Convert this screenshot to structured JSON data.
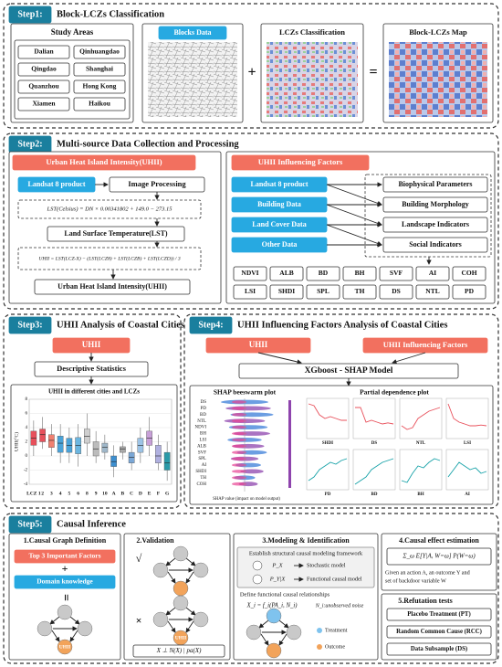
{
  "step1": {
    "badge": "Step1:",
    "title": "Block-LCZs Classification",
    "study_areas": {
      "title": "Study Areas",
      "cities": [
        "Dalian",
        "Qinhuangdao",
        "Qingdao",
        "Shanghai",
        "Quanzhou",
        "Hong Kong",
        "Xiamen",
        "Haikou"
      ]
    },
    "panels": [
      "Blocks Data",
      "LCZs Classification",
      "Block-LCZs Map"
    ],
    "operators": [
      "+",
      "="
    ]
  },
  "step2": {
    "badge": "Step2:",
    "title": "Multi-source Data Collection and Processing",
    "left": {
      "title": "Urban Heat Island Intensity(UHII)",
      "source": "Landsat 8 product",
      "process": "Image Processing",
      "formula1": "LST(Celsius) = DN × 0.00341802 + 149.0 − 273.15",
      "lst": "Land Surface Temperature(LST)",
      "formula2": "UHII = LST(LCZ-X) − (LST(LCZ8) + LST(LCZB) + LST(LCZD)) / 3",
      "result": "Urban Heat Island Intensity(UHII)"
    },
    "right": {
      "title": "UHII Influencing Factors",
      "sources": [
        "Landsat 8 product",
        "Building Data",
        "Land Cover Data",
        "Other Data"
      ],
      "factors": [
        "Biophysical Parameters",
        "Building Morphology",
        "Landscape Indicators",
        "Social Indicators"
      ],
      "indicators": [
        "NDVI",
        "ALB",
        "BD",
        "BH",
        "SVF",
        "AI",
        "COH",
        "LSI",
        "SHDI",
        "SPL",
        "TH",
        "DS",
        "NTL",
        "PD"
      ]
    }
  },
  "step3": {
    "badge": "Step3:",
    "title": "UHII Analysis of Coastal Cities",
    "uhii": "UHII",
    "stats": "Descriptive Statistics",
    "chart": {
      "type": "box",
      "title": "UHII in different cities and LCZs",
      "ylabel": "UHII(°C)",
      "categories": [
        "LCZ 1",
        "2",
        "3",
        "4",
        "5",
        "6",
        "8",
        "9",
        "10",
        "A",
        "B",
        "C",
        "D",
        "E",
        "F",
        "G"
      ],
      "colors": [
        "#e8505b",
        "#e8505b",
        "#f08070",
        "#4aa3d8",
        "#4aa3d8",
        "#6bb6e0",
        "#cfcfcf",
        "#bcbcbc",
        "#9fb7c9",
        "#3d8fd0",
        "#aaaaaa",
        "#7aa7d6",
        "#9cc3e6",
        "#c8a0d8",
        "#b0b0e0",
        "#2a9aa8"
      ],
      "low": [
        0,
        1,
        0,
        -1,
        -1,
        -1.5,
        0,
        -1,
        -0.5,
        -3,
        -0.5,
        -2,
        -1,
        0,
        -2,
        -3.5
      ],
      "q1": [
        1.5,
        2,
        1.2,
        0.5,
        0.5,
        0.3,
        1.8,
        0,
        0.5,
        -1.5,
        0.5,
        -1,
        0.5,
        1.5,
        -1,
        -2
      ],
      "median": [
        2.5,
        3,
        2.2,
        1.8,
        1.5,
        1.5,
        2.8,
        1,
        1.2,
        -0.8,
        1,
        -0.2,
        1.5,
        2.5,
        0,
        -1
      ],
      "q3": [
        3.5,
        3.8,
        3,
        2.8,
        2.5,
        2.6,
        3.8,
        2,
        1.8,
        0,
        1.3,
        0.5,
        2.5,
        3.5,
        1.5,
        0.5
      ],
      "high": [
        5,
        5.5,
        4.5,
        4.5,
        4,
        4.5,
        6,
        3.5,
        3,
        1.5,
        2,
        2,
        4,
        5.5,
        3,
        2
      ],
      "ylim": [
        -4,
        8
      ],
      "yticks": [
        -4,
        -2,
        0,
        2,
        4,
        6,
        8
      ]
    }
  },
  "step4": {
    "badge": "Step4:",
    "title": "UHII Influencing Factors Analysis of Coastal Cities",
    "inputs": [
      "UHII",
      "UHII Influencing Factors"
    ],
    "model": "XGboost - SHAP Model",
    "beeswarm": {
      "title": "SHAP beeswarm plot",
      "features": [
        "DS",
        "PD",
        "BD",
        "NTL",
        "NDVI",
        "BH",
        "LSI",
        "ALB",
        "SVF",
        "SPL",
        "AI",
        "SHDI",
        "TH",
        "COH"
      ],
      "xlabel": "SHAP value (impact on model output)"
    },
    "pdp": {
      "title": "Partial dependence plot",
      "ylim": [
        0,
        1
      ],
      "panels": [
        {
          "name": "SHDI",
          "color": "#e8505b",
          "values": [
            0.9,
            0.85,
            0.6,
            0.5,
            0.55,
            0.5,
            0.45,
            0.45
          ]
        },
        {
          "name": "DS",
          "color": "#e8505b",
          "values": [
            0.8,
            0.8,
            0.4,
            0.45,
            0.4,
            0.35,
            0.38,
            0.35
          ]
        },
        {
          "name": "NTL",
          "color": "#e8505b",
          "values": [
            0.3,
            0.2,
            0.25,
            0.5,
            0.6,
            0.7,
            0.75,
            0.8
          ]
        },
        {
          "name": "LSI",
          "color": "#e8505b",
          "values": [
            0.9,
            0.5,
            0.4,
            0.35,
            0.3,
            0.3,
            0.32,
            0.3
          ]
        },
        {
          "name": "PD",
          "color": "#17a2a8",
          "values": [
            0.2,
            0.3,
            0.5,
            0.6,
            0.7,
            0.65,
            0.75,
            0.8
          ]
        },
        {
          "name": "BD",
          "color": "#17a2a8",
          "values": [
            0.1,
            0.2,
            0.3,
            0.5,
            0.6,
            0.7,
            0.75,
            0.8
          ]
        },
        {
          "name": "BH",
          "color": "#17a2a8",
          "values": [
            0.2,
            0.15,
            0.4,
            0.6,
            0.55,
            0.7,
            0.8,
            0.75
          ]
        },
        {
          "name": "AI",
          "color": "#17a2a8",
          "values": [
            0.3,
            0.5,
            0.7,
            0.6,
            0.5,
            0.55,
            0.4,
            0.45
          ]
        }
      ]
    }
  },
  "step5": {
    "badge": "Step5:",
    "title": "Causal Inference",
    "p1": {
      "title": "1.Causal Graph Definition",
      "factors": "Top 3 Important Factors",
      "plus": "+",
      "knowledge": "Domain knowledge",
      "equals": "=",
      "node": "UHII"
    },
    "p2": {
      "title": "2.Validation",
      "check": "√",
      "cross": "×",
      "node": "UHII",
      "formula": "X ⊥ N(X) | pa(X)"
    },
    "p3": {
      "title": "3.Modeling & Identification",
      "framework": "Establish structural causal modeling framework",
      "px": "P_X",
      "px_desc": "Stochastic model",
      "pyx": "P_Y|X",
      "pyx_desc": "Functional causal model",
      "define": "Define functional causal relationships",
      "formula": "X_i = f_i(PA_i, N_i)",
      "noise": "N_i:unobserved noise",
      "treatment": "Treatment",
      "outcome": "Outcome"
    },
    "p4": {
      "title": "4.Causal effect estimation",
      "formula": "Σ_ω E[Y|A, W=ω] P(W=ω)",
      "desc": [
        "Given an action A, an outcome Y and",
        "set of backdoor variable W"
      ]
    },
    "p5": {
      "title": "5.Refutation tests",
      "tests": [
        "Placebo Treatment (PT)",
        "Random Common Cause (RCC)",
        "Data Subsample (DS)"
      ]
    }
  }
}
